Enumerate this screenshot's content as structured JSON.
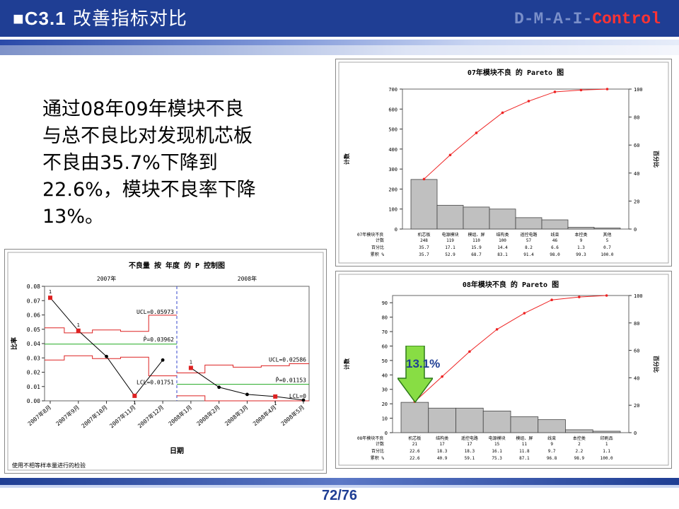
{
  "header": {
    "title_prefix": "■C3.1",
    "title": "改善指标对比",
    "phase_dim": "D-M-A-I-",
    "phase_current": "Control"
  },
  "body_text": {
    "lines": [
      "通过08年09年模块不良",
      "与总不良比对发现机芯板",
      "不良由35.7%下降到",
      "22.6%，模块不良率下降",
      "13%。"
    ]
  },
  "page": {
    "number": "72/76"
  },
  "arrow_label": "13.1%",
  "chart_data": [
    {
      "type": "bar",
      "id": "pareto07",
      "title": "07年模块不良 的 Pareto 图",
      "ylabel": "计数",
      "y2label": "百分比",
      "ylim": [
        0,
        700
      ],
      "yticks": [
        0,
        100,
        200,
        300,
        400,
        500,
        600,
        700
      ],
      "y2lim": [
        0,
        100
      ],
      "y2ticks": [
        0,
        20,
        40,
        60,
        80,
        100
      ],
      "row_label": "07年模块不良",
      "row_headers": [
        "计数",
        "百分比",
        "累积 %"
      ],
      "categories": [
        "机芯板",
        "电源模块",
        "模组、屏",
        "结构类",
        "遥控电路",
        "线束",
        "本控类",
        "其他"
      ],
      "counts": [
        248,
        119,
        110,
        100,
        57,
        46,
        9,
        5
      ],
      "percent_text": [
        "35.7",
        "17.1",
        "15.9",
        "14.4",
        "8.2",
        "6.6",
        "1.3",
        "0.7"
      ],
      "cum_text": [
        "35.7",
        "52.9",
        "68.7",
        "83.1",
        "91.4",
        "98.0",
        "99.3",
        "100.0"
      ],
      "cumulative": [
        35.7,
        52.9,
        68.7,
        83.1,
        91.4,
        98.0,
        99.3,
        100.0
      ],
      "colors": {
        "bar": "#c0c0c0",
        "line": "#ee2222"
      }
    },
    {
      "type": "bar",
      "id": "pareto08",
      "title": "08年模块不良 的 Pareto 图",
      "ylabel": "计数",
      "y2label": "百分比",
      "ylim": [
        0,
        95
      ],
      "yticks": [
        0,
        10,
        20,
        30,
        40,
        50,
        60,
        70,
        80,
        90
      ],
      "y2lim": [
        0,
        100
      ],
      "y2ticks": [
        0,
        20,
        40,
        60,
        80,
        100
      ],
      "row_label": "08年模块不良",
      "row_headers": [
        "计数",
        "百分比",
        "累积 %"
      ],
      "categories": [
        "机芯板",
        "结构类",
        "遥控电路",
        "电源模块",
        "模组、屏",
        "线束",
        "本控类",
        "印刷品"
      ],
      "counts": [
        21,
        17,
        17,
        15,
        11,
        9,
        2,
        1
      ],
      "percent_text": [
        "22.6",
        "18.3",
        "18.3",
        "16.1",
        "11.8",
        "9.7",
        "2.2",
        "1.1"
      ],
      "cum_text": [
        "22.6",
        "40.9",
        "59.1",
        "75.3",
        "87.1",
        "96.8",
        "98.9",
        "100.0"
      ],
      "cumulative": [
        22.6,
        40.9,
        59.1,
        75.3,
        87.1,
        96.8,
        98.9,
        100.0
      ],
      "colors": {
        "bar": "#c0c0c0",
        "line": "#ee2222"
      }
    },
    {
      "type": "line",
      "id": "pchart",
      "title": "不良量 按 年度 的 P 控制图",
      "xlabel": "日期",
      "ylabel": "比率",
      "footnote": "使用不相等样本量进行的检验",
      "stage_labels": [
        "2007年",
        "2008年"
      ],
      "ylim": [
        0,
        0.08
      ],
      "yticks": [
        "0.00",
        "0.01",
        "0.02",
        "0.03",
        "0.04",
        "0.05",
        "0.06",
        "0.07",
        "0.08"
      ],
      "categories": [
        "2007年8月",
        "2007年9月",
        "2007年10月",
        "2007年11月",
        "2007年12月",
        "2008年1月",
        "2008年2月",
        "2008年3月",
        "2008年4月",
        "2008年5月"
      ],
      "values": [
        0.072,
        0.049,
        0.031,
        0.0035,
        0.0285,
        0.023,
        0.0095,
        0.0045,
        0.003,
        0.0005
      ],
      "out_of_control": [
        true,
        true,
        false,
        true,
        false,
        true,
        false,
        false,
        true,
        false
      ],
      "test_labels": [
        "1",
        "1",
        "",
        "1",
        "",
        "1",
        "",
        "",
        "1",
        ""
      ],
      "stage1": {
        "center": 0.03962,
        "ucl_text": "UCL=0.05973",
        "cl_text": "P̄=0.03962",
        "lcl_text": "LCL=0.01751",
        "ucl_steps": [
          0.051,
          0.0475,
          0.0495,
          0.0485,
          0.0598
        ],
        "lcl_steps": [
          0.0285,
          0.0315,
          0.0295,
          0.0305,
          0.0175
        ]
      },
      "stage2": {
        "center": 0.01153,
        "ucl_text": "UCL=0.02586",
        "cl_text": "P̄=0.01153",
        "lcl_text": "LCL=0",
        "ucl_steps": [
          0.0195,
          0.025,
          0.0235,
          0.0245,
          0.0259
        ],
        "lcl_steps": [
          0.0035,
          0.0,
          0.0,
          0.0,
          0.0
        ]
      },
      "colors": {
        "points": "#000000",
        "ooc": "#dd2222",
        "limits": "#dd2222",
        "center": "#22aa22",
        "stage_div": "#3344cc"
      }
    }
  ]
}
